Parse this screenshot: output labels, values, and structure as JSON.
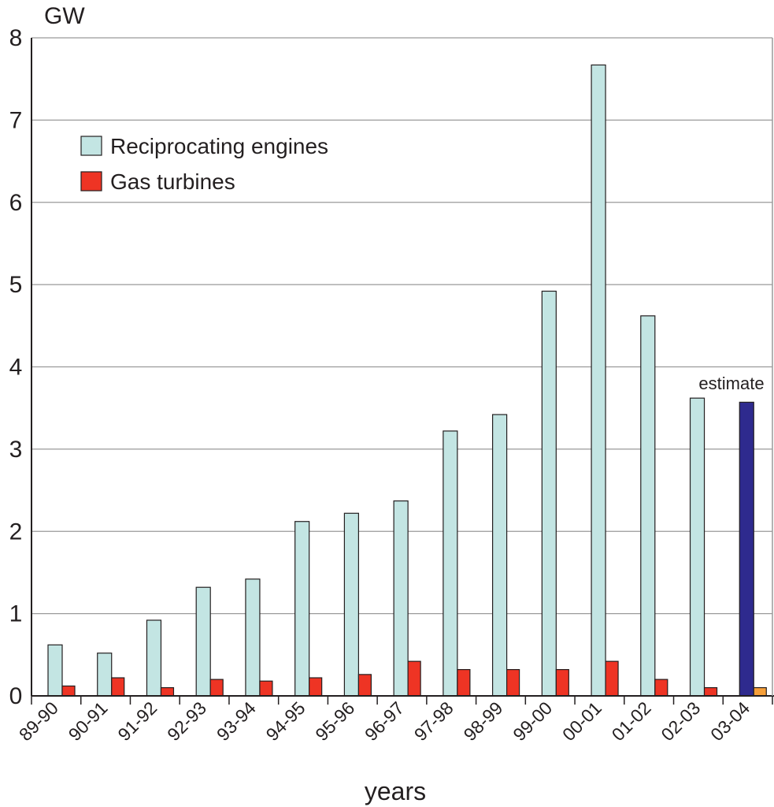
{
  "chart_data": {
    "type": "bar",
    "title": "",
    "ylabel": "GW",
    "xlabel": "years",
    "ylim": [
      0,
      8
    ],
    "yticks": [
      "0",
      "1",
      "2",
      "3",
      "4",
      "5",
      "6",
      "7",
      "8"
    ],
    "grid": true,
    "legend_position": "top-left",
    "categories": [
      "89-90",
      "90-91",
      "91-92",
      "92-93",
      "93-94",
      "94-95",
      "95-96",
      "96-97",
      "97-98",
      "98-99",
      "99-00",
      "00-01",
      "01-02",
      "02-03",
      "03-04"
    ],
    "series": [
      {
        "name": "Reciprocating engines",
        "color": "#c3e5e3",
        "estimate_color": "#2e2a8e",
        "values": [
          0.62,
          0.52,
          0.92,
          1.32,
          1.42,
          2.12,
          2.22,
          2.37,
          3.22,
          3.42,
          4.92,
          7.67,
          4.62,
          3.62,
          3.57
        ]
      },
      {
        "name": "Gas turbines",
        "color": "#ee3424",
        "estimate_color": "#f6a03a",
        "values": [
          0.12,
          0.22,
          0.1,
          0.2,
          0.18,
          0.22,
          0.26,
          0.42,
          0.32,
          0.32,
          0.32,
          0.42,
          0.2,
          0.1,
          0.1
        ]
      }
    ],
    "estimate_category": "03-04",
    "annotations": [
      {
        "text": "estimate",
        "category": "03-04"
      }
    ]
  }
}
